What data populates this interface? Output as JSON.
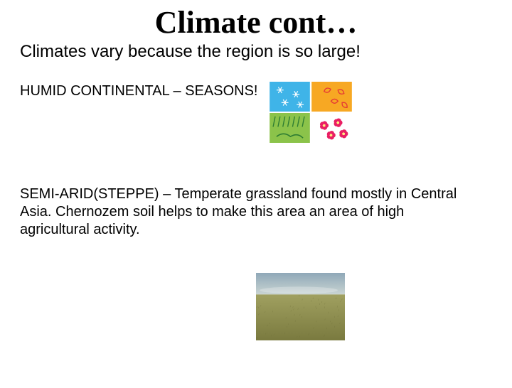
{
  "title": "Climate cont…",
  "subtitle": "Climates vary because the region is so large!",
  "section1": {
    "text": "HUMID CONTINENTAL –  SEASONS!",
    "seasons_image": {
      "cells": [
        {
          "bg": "#3fb4e8",
          "accent": "#ffffff",
          "motif": "snowflake"
        },
        {
          "bg": "#f7a823",
          "accent": "#e53935",
          "motif": "leaves"
        },
        {
          "bg": "#8bc34a",
          "accent": "#2e7d32",
          "motif": "rain"
        },
        {
          "bg": "#ffffff",
          "accent": "#e91e63",
          "motif": "flowers"
        }
      ]
    }
  },
  "section2": {
    "text": "SEMI-ARID(STEPPE) – Temperate grassland found mostly in Central Asia.  Chernozem soil helps to make this area an area of high agricultural activity.",
    "grassland_image": {
      "sky_top": "#8fa8b8",
      "sky_bottom": "#c9d4d2",
      "grass_top": "#a0a060",
      "grass_bottom": "#7a7a3f",
      "horizon_pct": 32
    }
  },
  "typography": {
    "title_fontsize": 44,
    "subtitle_fontsize": 24,
    "body_fontsize": 20
  }
}
